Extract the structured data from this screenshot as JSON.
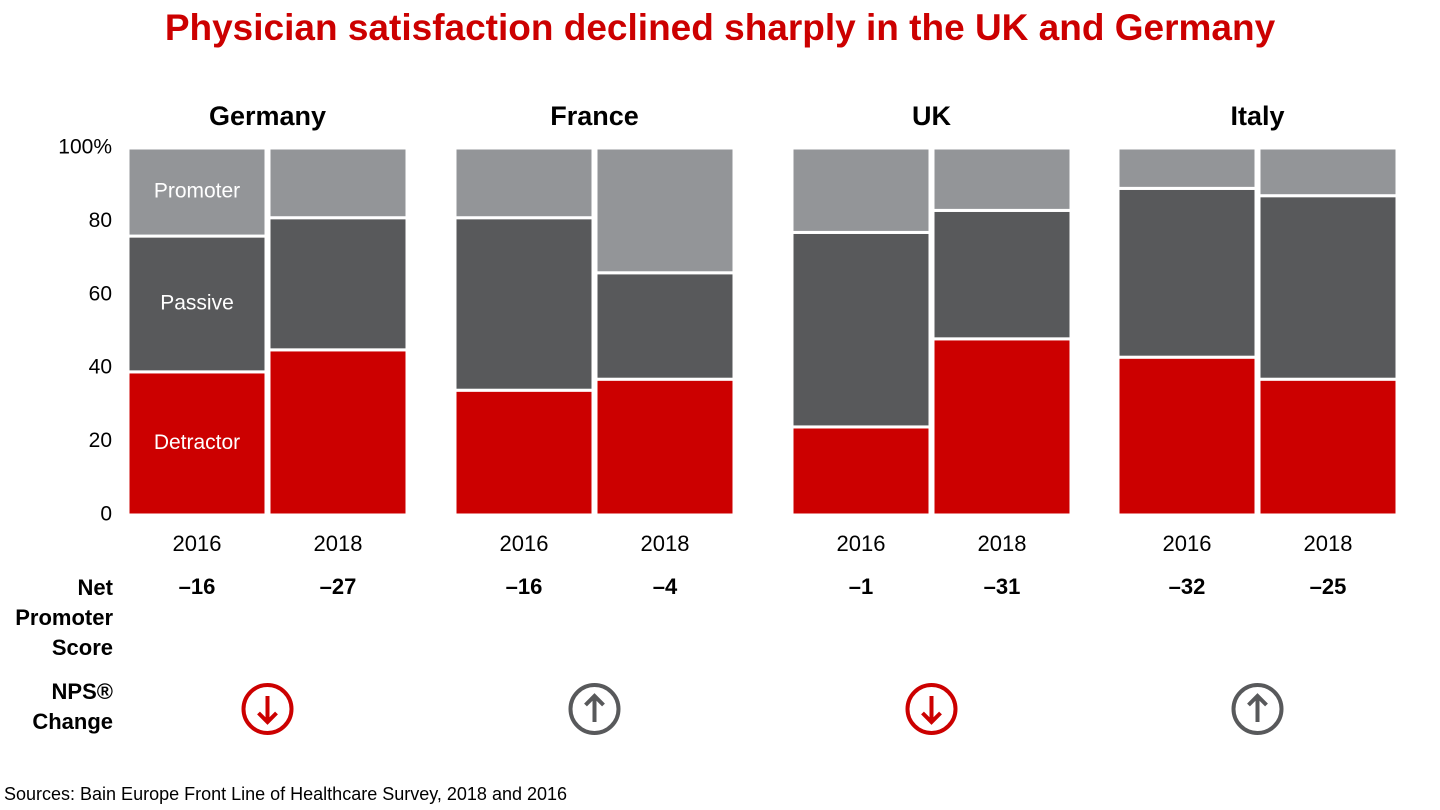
{
  "title": "Physician satisfaction declined sharply in the UK and Germany",
  "row_labels": {
    "nps": "Net Promoter Score",
    "change": "NPS® Change"
  },
  "source": "Sources: Bain Europe Front Line of Healthcare Survey, 2018 and 2016",
  "chart_data": [
    {
      "type": "stacked_bar",
      "title": "Germany",
      "categories": [
        "2016",
        "2018"
      ],
      "series": [
        {
          "name": "Detractor",
          "color": "#cc0000",
          "values": [
            39,
            45
          ]
        },
        {
          "name": "Passive",
          "color": "#58595b",
          "values": [
            37,
            36
          ]
        },
        {
          "name": "Promoter",
          "color": "#939598",
          "values": [
            24,
            19
          ]
        }
      ],
      "ylim": [
        0,
        100
      ],
      "yticks": [
        0,
        20,
        40,
        60,
        80,
        {
          "value": 100,
          "label": "100%"
        }
      ],
      "net_promoter_score": {
        "values": [
          -16,
          -27
        ],
        "value_labels": [
          "–16",
          "–27"
        ]
      },
      "nps_change": {
        "direction": "down",
        "color": "#cc0000"
      }
    },
    {
      "type": "stacked_bar",
      "title": "France",
      "categories": [
        "2016",
        "2018"
      ],
      "series": [
        {
          "color": "#cc0000",
          "values": [
            34,
            37
          ]
        },
        {
          "color": "#58595b",
          "values": [
            47,
            29
          ]
        },
        {
          "color": "#939598",
          "values": [
            19,
            34
          ]
        }
      ],
      "ylim": [
        0,
        100
      ],
      "net_promoter_score": {
        "values": [
          -16,
          -4
        ],
        "value_labels": [
          "–16",
          "–4"
        ]
      },
      "nps_change": {
        "direction": "up",
        "color": "#58595b"
      }
    },
    {
      "type": "stacked_bar",
      "title": "UK",
      "categories": [
        "2016",
        "2018"
      ],
      "series": [
        {
          "color": "#cc0000",
          "values": [
            24,
            48
          ]
        },
        {
          "color": "#58595b",
          "values": [
            53,
            35
          ]
        },
        {
          "color": "#939598",
          "values": [
            23,
            17
          ]
        }
      ],
      "ylim": [
        0,
        100
      ],
      "net_promoter_score": {
        "values": [
          -1,
          -31
        ],
        "value_labels": [
          "–1",
          "–31"
        ]
      },
      "nps_change": {
        "direction": "down",
        "color": "#cc0000"
      }
    },
    {
      "type": "stacked_bar",
      "title": "Italy",
      "categories": [
        "2016",
        "2018"
      ],
      "series": [
        {
          "color": "#cc0000",
          "values": [
            43,
            37
          ]
        },
        {
          "color": "#58595b",
          "values": [
            46,
            50
          ]
        },
        {
          "color": "#939598",
          "values": [
            11,
            13
          ]
        }
      ],
      "ylim": [
        0,
        100
      ],
      "net_promoter_score": {
        "values": [
          -32,
          -25
        ],
        "value_labels": [
          "–32",
          "–25"
        ]
      },
      "nps_change": {
        "direction": "up",
        "color": "#58595b"
      }
    }
  ]
}
